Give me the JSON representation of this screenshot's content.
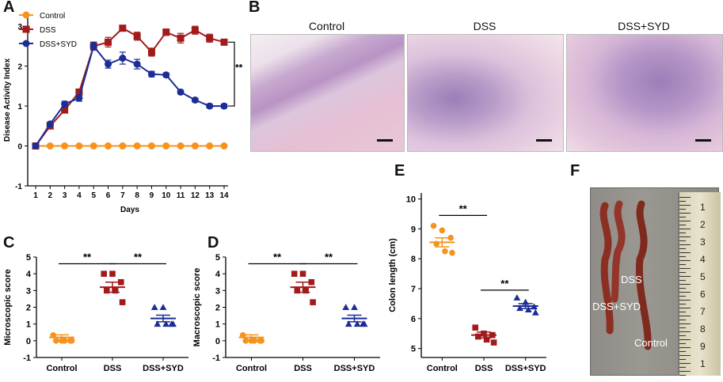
{
  "panel_labels": [
    "A",
    "B",
    "C",
    "D",
    "E",
    "F"
  ],
  "chart_data": [
    {
      "panel": "A",
      "type": "line",
      "title": "",
      "xlabel": "Days",
      "ylabel": "Disease Activity Index",
      "x": [
        1,
        2,
        3,
        4,
        5,
        6,
        7,
        8,
        9,
        10,
        11,
        12,
        13,
        14
      ],
      "xticks": [
        "1",
        "2",
        "3",
        "4",
        "5",
        "6",
        "7",
        "8",
        "9",
        "10",
        "11",
        "12",
        "13",
        "14"
      ],
      "yticks": [
        "-1",
        "0",
        "1",
        "2",
        "3"
      ],
      "ylim": [
        -1,
        3.3
      ],
      "series": [
        {
          "name": "Control",
          "color": "#f5931e",
          "marker": "circle",
          "values": [
            0,
            0,
            0,
            0,
            0,
            0,
            0,
            0,
            0,
            0,
            0,
            0,
            0,
            0
          ],
          "err": [
            0,
            0,
            0,
            0,
            0,
            0,
            0,
            0,
            0,
            0,
            0,
            0,
            0,
            0
          ]
        },
        {
          "name": "DSS",
          "color": "#a31a1a",
          "marker": "square",
          "values": [
            0,
            0.5,
            0.9,
            1.35,
            2.5,
            2.6,
            2.95,
            2.75,
            2.35,
            2.85,
            2.7,
            2.9,
            2.7,
            2.6
          ],
          "err": [
            0,
            0.05,
            0.07,
            0.06,
            0.1,
            0.12,
            0.07,
            0.1,
            0.1,
            0.08,
            0.12,
            0.1,
            0.1,
            0.07
          ]
        },
        {
          "name": "DSS+SYD",
          "color": "#1c2d96",
          "marker": "circle",
          "values": [
            0,
            0.55,
            1.05,
            1.2,
            2.5,
            2.05,
            2.2,
            2.05,
            1.8,
            1.78,
            1.35,
            1.15,
            1.0,
            1.0
          ],
          "err": [
            0,
            0.05,
            0.07,
            0.08,
            0.1,
            0.1,
            0.15,
            0.12,
            0.07,
            0.05,
            0.05,
            0.05,
            0.05,
            0.05
          ]
        }
      ],
      "annotations": [
        "**"
      ]
    },
    {
      "panel": "C",
      "type": "scatter",
      "xlabel": "",
      "ylabel": "Microscopic score",
      "categories": [
        "Control",
        "DSS",
        "DSS+SYD"
      ],
      "yticks": [
        "-1",
        "0",
        "1",
        "2",
        "3",
        "4",
        "5"
      ],
      "ylim": [
        -1,
        5
      ],
      "groups": [
        {
          "name": "Control",
          "color": "#f5931e",
          "marker": "circle",
          "points": [
            0.33,
            0,
            0,
            0,
            0,
            0
          ],
          "mean": 0.2,
          "sem": 0.15
        },
        {
          "name": "DSS",
          "color": "#a31a1a",
          "marker": "square",
          "points": [
            4,
            4,
            3.5,
            3,
            3,
            2.3
          ],
          "mean": 3.2,
          "sem": 0.3
        },
        {
          "name": "DSS+SYD",
          "color": "#1c2d96",
          "marker": "triangle",
          "points": [
            2,
            2,
            1,
            1,
            1,
            1
          ],
          "mean": 1.33,
          "sem": 0.2
        }
      ],
      "annotations": [
        "**",
        "**"
      ]
    },
    {
      "panel": "D",
      "type": "scatter",
      "xlabel": "",
      "ylabel": "Macroscopic score",
      "categories": [
        "Control",
        "DSS",
        "DSS+SYD"
      ],
      "yticks": [
        "-1",
        "0",
        "1",
        "2",
        "3",
        "4",
        "5"
      ],
      "ylim": [
        -1,
        5
      ],
      "groups": [
        {
          "name": "Control",
          "color": "#f5931e",
          "marker": "circle",
          "points": [
            0.33,
            0,
            0,
            0,
            0,
            0
          ],
          "mean": 0.2,
          "sem": 0.15
        },
        {
          "name": "DSS",
          "color": "#a31a1a",
          "marker": "square",
          "points": [
            4,
            4,
            3.5,
            3,
            3,
            2.3
          ],
          "mean": 3.2,
          "sem": 0.3
        },
        {
          "name": "DSS+SYD",
          "color": "#1c2d96",
          "marker": "triangle",
          "points": [
            2,
            2,
            1,
            1,
            1,
            1
          ],
          "mean": 1.33,
          "sem": 0.2
        }
      ],
      "annotations": [
        "**",
        "**"
      ]
    },
    {
      "panel": "E",
      "type": "scatter",
      "xlabel": "",
      "ylabel": "Colon length (cm)",
      "categories": [
        "Control",
        "DSS",
        "DSS+SYD"
      ],
      "yticks": [
        "5",
        "6",
        "7",
        "8",
        "9",
        "10"
      ],
      "ylim": [
        4.7,
        10.2
      ],
      "groups": [
        {
          "name": "Control",
          "color": "#f5931e",
          "marker": "circle",
          "points": [
            9.1,
            8.95,
            8.7,
            8.5,
            8.25,
            8.2
          ],
          "mean": 8.55,
          "sem": 0.15
        },
        {
          "name": "DSS",
          "color": "#a31a1a",
          "marker": "square",
          "points": [
            5.7,
            5.5,
            5.45,
            5.4,
            5.3,
            5.2
          ],
          "mean": 5.45,
          "sem": 0.1
        },
        {
          "name": "DSS+SYD",
          "color": "#1c2d96",
          "marker": "triangle",
          "points": [
            6.7,
            6.55,
            6.4,
            6.35,
            6.3,
            6.2
          ],
          "mean": 6.42,
          "sem": 0.08
        }
      ],
      "annotations": [
        "**",
        "**"
      ]
    }
  ],
  "histology": {
    "titles": [
      "Control",
      "DSS",
      "DSS+SYD"
    ]
  },
  "photo": {
    "labels": [
      "DSS",
      "DSS+SYD",
      "Control"
    ],
    "ruler_numbers": [
      "1",
      "2",
      "3",
      "4",
      "5",
      "6",
      "7",
      "8",
      "9",
      "1"
    ]
  }
}
